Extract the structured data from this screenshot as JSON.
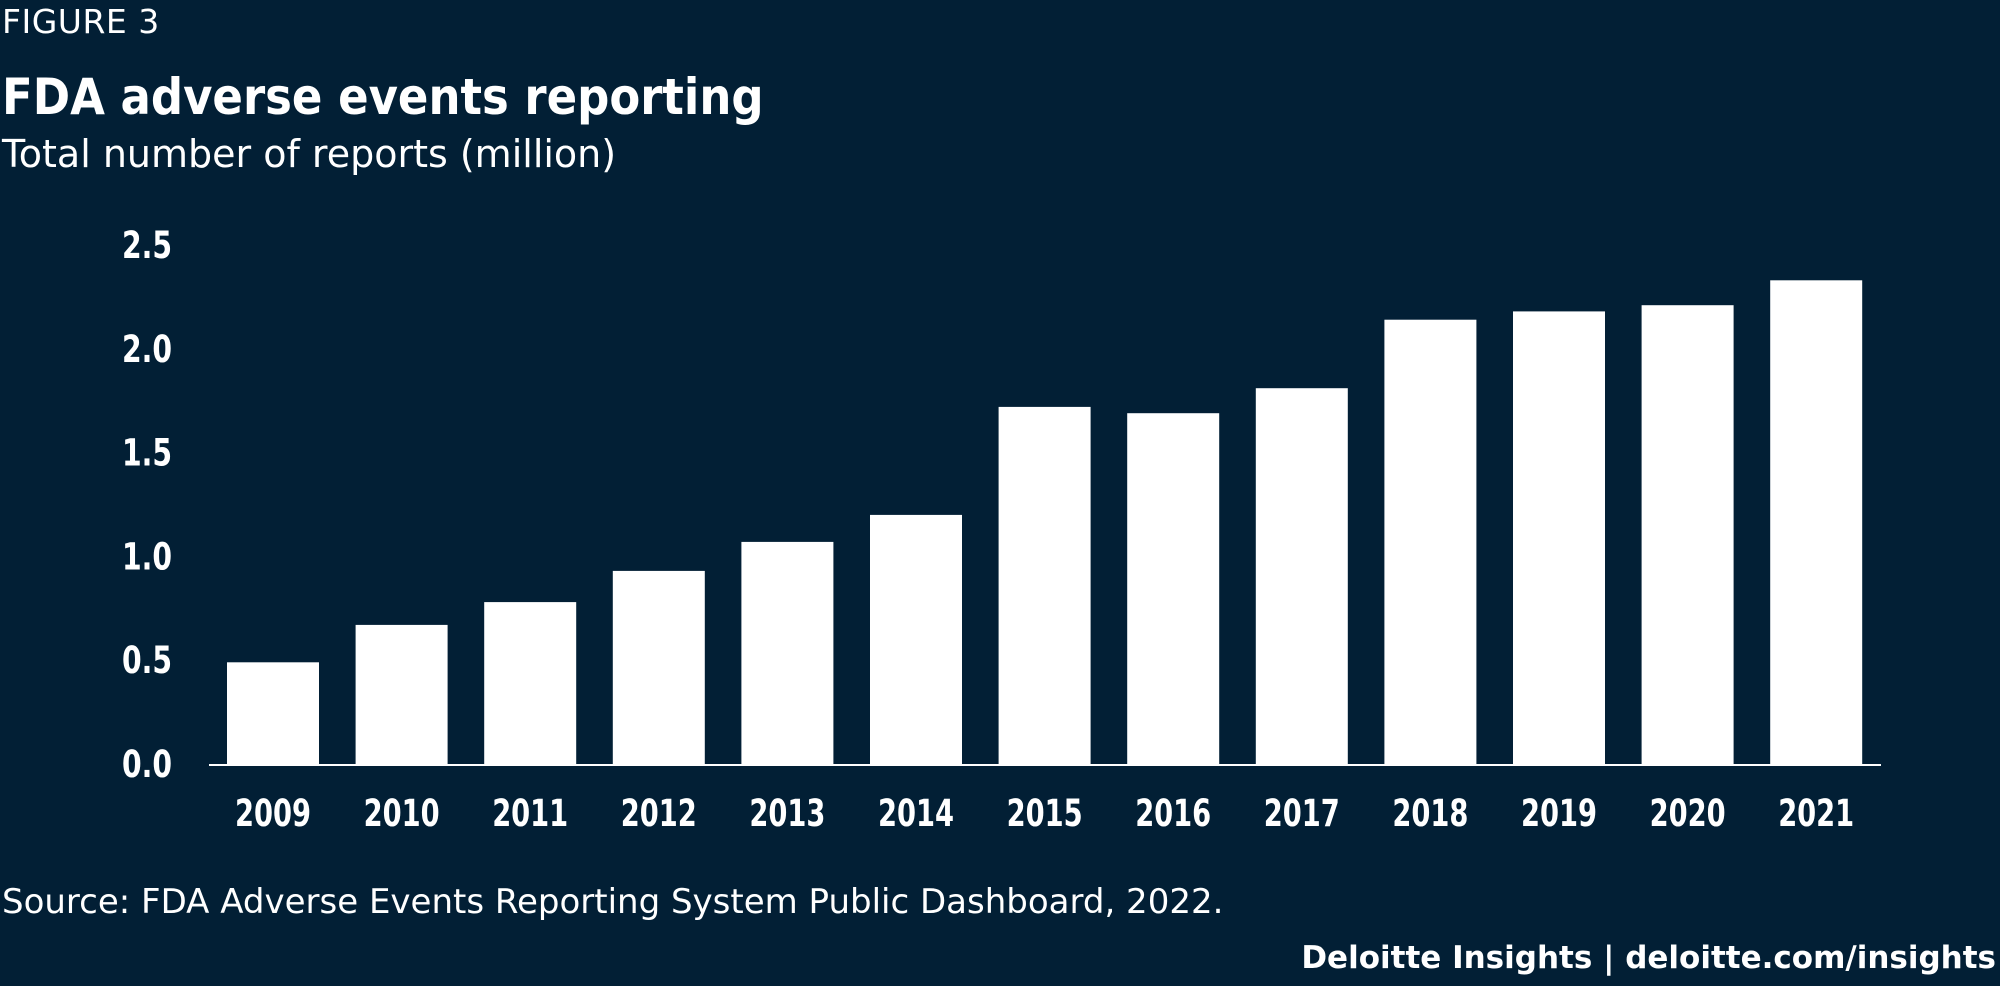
{
  "figure_label": "FIGURE 3",
  "footer": {
    "source": "Source: FDA Adverse Events Reporting System Public Dashboard, 2022.",
    "brand": "Deloitte Insights | deloitte.com/insights"
  },
  "colors": {
    "background": "#021f35",
    "bar": "#ffffff",
    "text": "#ffffff"
  },
  "chart_data": {
    "type": "bar",
    "title": "FDA adverse events reporting",
    "subtitle": "Total number of reports (million)",
    "xlabel": "",
    "ylabel": "",
    "categories": [
      "2009",
      "2010",
      "2011",
      "2012",
      "2013",
      "2014",
      "2015",
      "2016",
      "2017",
      "2018",
      "2019",
      "2020",
      "2021"
    ],
    "values": [
      0.49,
      0.67,
      0.78,
      0.93,
      1.07,
      1.2,
      1.72,
      1.69,
      1.81,
      2.14,
      2.18,
      2.21,
      2.33
    ],
    "ylim": [
      0,
      2.5
    ],
    "yticks": [
      "0.0",
      "0.5",
      "1.0",
      "1.5",
      "2.0",
      "2.5"
    ],
    "grid": false,
    "legend": "none"
  }
}
